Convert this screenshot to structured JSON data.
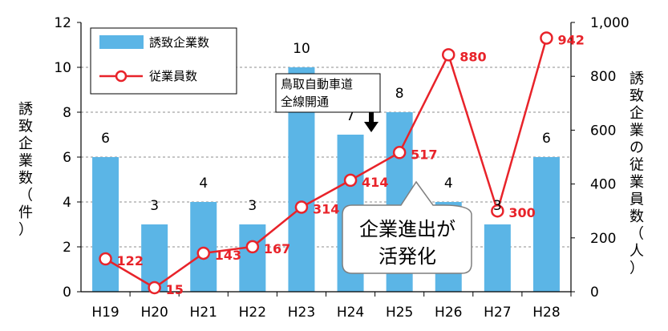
{
  "chart_data": {
    "type": "bar+line",
    "categories": [
      "H19",
      "H20",
      "H21",
      "H22",
      "H23",
      "H24",
      "H25",
      "H26",
      "H27",
      "H28"
    ],
    "series": [
      {
        "name": "誘致企業数",
        "type": "bar",
        "axis": "left",
        "color": "#5bb5e6",
        "values": [
          6,
          3,
          4,
          3,
          10,
          7,
          8,
          4,
          3,
          6
        ]
      },
      {
        "name": "従業員数",
        "type": "line",
        "axis": "right",
        "color": "#e8232a",
        "values": [
          122,
          15,
          143,
          167,
          314,
          414,
          517,
          880,
          300,
          942
        ]
      }
    ],
    "y_left": {
      "label_chars": [
        "誘",
        "致",
        "企",
        "業",
        "数",
        "（",
        "件",
        "）"
      ],
      "range": [
        0,
        12
      ],
      "ticks": [
        "0",
        "2",
        "4",
        "6",
        "8",
        "10",
        "12"
      ],
      "grid": true
    },
    "y_right": {
      "label_chars": [
        "誘",
        "致",
        "企",
        "業",
        "の",
        "従",
        "業",
        "員",
        "数",
        "（",
        "人",
        "）"
      ],
      "range": [
        0,
        1000
      ],
      "ticks": [
        "0",
        "200",
        "400",
        "600",
        "800",
        "1,000"
      ]
    },
    "legend": {
      "position": "top-left"
    },
    "annotations": {
      "arrow_note_lines": [
        "鳥取自動車道",
        "全線開通"
      ],
      "callout_lines": [
        "企業進出が",
        "活発化"
      ]
    }
  }
}
